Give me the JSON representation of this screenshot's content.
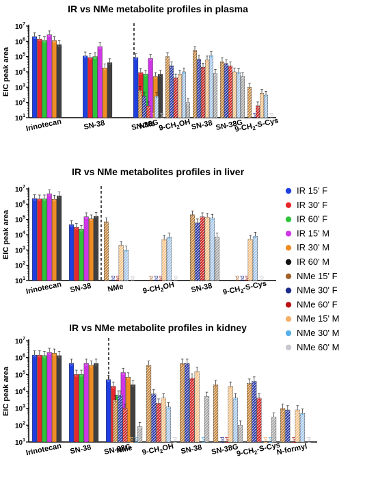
{
  "legend": [
    {
      "name": "IR 15' F",
      "color": "#1f3fe0",
      "dot": "#1f3fe0",
      "hatch": false
    },
    {
      "name": "IR 30' F",
      "color": "#e8262b",
      "dot": "#e8262b",
      "hatch": false
    },
    {
      "name": "IR 60' F",
      "color": "#2ec43a",
      "dot": "#2ec43a",
      "hatch": false
    },
    {
      "name": "IR 15' M",
      "color": "#cf36e6",
      "dot": "#cf36e6",
      "hatch": false
    },
    {
      "name": "IR 30' M",
      "color": "#f08c24",
      "dot": "#f08c24",
      "hatch": false
    },
    {
      "name": "IR 60' M",
      "color": "#404040",
      "dot": "#111111",
      "hatch": false
    },
    {
      "name": "NMe 15' F",
      "color": "#c4863e",
      "dot": "#a0622a",
      "hatch": true
    },
    {
      "name": "NMe 30' F",
      "color": "#2c3aa8",
      "dot": "#1c2a8a",
      "hatch": true
    },
    {
      "name": "NMe 60' F",
      "color": "#cc2222",
      "dot": "#bb1111",
      "hatch": true
    },
    {
      "name": "NMe 15' M",
      "color": "#f6c48a",
      "dot": "#f3b06a",
      "hatch": true
    },
    {
      "name": "NMe 30' M",
      "color": "#a8c8ea",
      "dot": "#58b0e8",
      "hatch": true
    },
    {
      "name": "NMe 60' M",
      "color": "#a8a8a8",
      "dot": "#c8c8d0",
      "hatch": true
    }
  ],
  "chart_data": [
    {
      "type": "bar",
      "title": "IR vs NMe metabolite profiles in plasma",
      "ylabel": "EIC peak area",
      "yscale": "log",
      "ylim": [
        10,
        10000000
      ],
      "yticks": [
        "10",
        "10",
        "10",
        "10",
        "10",
        "10",
        "10"
      ],
      "yexp": [
        "1",
        "2",
        "3",
        "4",
        "5",
        "6",
        "7"
      ],
      "ir_categories": [
        "Irinotecan",
        "SN-38",
        "SN-38G"
      ],
      "nme_categories": [
        {
          "pre": "NMe",
          "sub": "",
          "post": ""
        },
        {
          "pre": "9-CH",
          "sub": "2",
          "post": "OH"
        },
        {
          "pre": "SN-38",
          "sub": "",
          "post": ""
        },
        {
          "pre": "SN-38G",
          "sub": "",
          "post": ""
        },
        {
          "pre": "9-CH",
          "sub": "2",
          "post": "-S-Cys"
        }
      ],
      "nd_label": "nd",
      "ir_series": [
        {
          "name": "IR 15' F",
          "values": [
            2000000,
            110000,
            85000
          ]
        },
        {
          "name": "IR 30' F",
          "values": [
            1400000,
            85000,
            9000
          ]
        },
        {
          "name": "IR 60' F",
          "values": [
            1100000,
            100000,
            7000
          ]
        },
        {
          "name": "IR 15' M",
          "values": [
            2700000,
            450000,
            75000
          ]
        },
        {
          "name": "IR 30' M",
          "values": [
            1100000,
            18000,
            5000
          ]
        },
        {
          "name": "IR 60' M",
          "values": [
            600000,
            40000,
            7000
          ]
        }
      ],
      "nme_series": [
        {
          "name": "NMe 15' F",
          "values": [
            600,
            100000,
            250000,
            45000,
            1000
          ]
        },
        {
          "name": "NMe 30' F",
          "values": [
            250,
            25000,
            70000,
            35000,
            null
          ]
        },
        {
          "name": "NMe 60' F",
          "values": [
            60,
            4000,
            20000,
            25000,
            60
          ]
        },
        {
          "name": "NMe 15' M",
          "values": [
            null,
            7000,
            60000,
            10000,
            400
          ]
        },
        {
          "name": "NMe 30' M",
          "values": [
            250,
            10000,
            120000,
            9000,
            300
          ]
        },
        {
          "name": "NMe 60' M",
          "values": [
            null,
            100,
            8000,
            5000,
            null
          ]
        }
      ]
    },
    {
      "type": "bar",
      "title": "IR vs NMe metabolites profiles in liver",
      "ylabel": "EIC peak area",
      "yscale": "log",
      "ylim": [
        10,
        10000000
      ],
      "yticks": [
        "10",
        "10",
        "10",
        "10",
        "10",
        "10",
        "10"
      ],
      "yexp": [
        "1",
        "2",
        "3",
        "4",
        "5",
        "6",
        "7"
      ],
      "ir_categories": [
        "Irinotecan",
        "SN-38"
      ],
      "nme_categories": [
        {
          "pre": "NMe",
          "sub": "",
          "post": ""
        },
        {
          "pre": "9-CH",
          "sub": "2",
          "post": "OH"
        },
        {
          "pre": "SN-38",
          "sub": "",
          "post": ""
        },
        {
          "pre": "9-CH",
          "sub": "2",
          "post": "-S-Cys"
        }
      ],
      "nd_label": "nd",
      "ir_series": [
        {
          "name": "IR 15' F",
          "values": [
            2300000,
            45000
          ]
        },
        {
          "name": "IR 30' F",
          "values": [
            2200000,
            30000
          ]
        },
        {
          "name": "IR 60' F",
          "values": [
            2200000,
            22000
          ]
        },
        {
          "name": "IR 15' M",
          "values": [
            4800000,
            150000
          ]
        },
        {
          "name": "IR 30' M",
          "values": [
            2100000,
            110000
          ]
        },
        {
          "name": "IR 60' M",
          "values": [
            3500000,
            160000
          ]
        }
      ],
      "nme_series": [
        {
          "name": "NMe 15' F",
          "values": [
            70000,
            null,
            200000,
            null
          ]
        },
        {
          "name": "NMe 30' F",
          "values": [
            null,
            null,
            60000,
            null
          ]
        },
        {
          "name": "NMe 60' F",
          "values": [
            null,
            null,
            150000,
            null
          ]
        },
        {
          "name": "NMe 15' M",
          "values": [
            2000,
            5000,
            140000,
            5000
          ]
        },
        {
          "name": "NMe 30' M",
          "values": [
            1000,
            7000,
            120000,
            8000
          ]
        },
        {
          "name": "NMe 60' M",
          "values": [
            null,
            null,
            7000,
            null
          ]
        }
      ]
    },
    {
      "type": "bar",
      "title": "IR vs NMe metabolite profiles in kidney",
      "ylabel": "EIC peak area",
      "yscale": "log",
      "ylim": [
        10,
        10000000
      ],
      "yticks": [
        "10",
        "10",
        "10",
        "10",
        "10",
        "10",
        "10"
      ],
      "yexp": [
        "1",
        "2",
        "3",
        "4",
        "5",
        "6",
        "7"
      ],
      "ir_categories": [
        "Irinotecan",
        "SN-38",
        "SN-38G"
      ],
      "nme_categories": [
        {
          "pre": "NMe",
          "sub": "",
          "post": ""
        },
        {
          "pre": "9-CH",
          "sub": "2",
          "post": "OH"
        },
        {
          "pre": "SN-38",
          "sub": "",
          "post": ""
        },
        {
          "pre": "SN-38G",
          "sub": "",
          "post": ""
        },
        {
          "pre": "9-CH",
          "sub": "2",
          "post": "-S-Cys"
        },
        {
          "pre": "N-formyl",
          "sub": "",
          "post": ""
        }
      ],
      "nd_label": "nd",
      "ir_series": [
        {
          "name": "IR 15' F",
          "values": [
            1400000,
            450000,
            50000
          ]
        },
        {
          "name": "IR 30' F",
          "values": [
            1400000,
            100000,
            20000
          ]
        },
        {
          "name": "IR 60' F",
          "values": [
            1300000,
            100000,
            6000
          ]
        },
        {
          "name": "IR 15' M",
          "values": [
            2000000,
            450000,
            130000
          ]
        },
        {
          "name": "IR 30' M",
          "values": [
            1800000,
            350000,
            70000
          ]
        },
        {
          "name": "IR 60' M",
          "values": [
            1300000,
            450000,
            25000
          ]
        }
      ],
      "nme_series": [
        {
          "name": "NMe 15' F",
          "values": [
            3000,
            350000,
            450000,
            25000,
            30000,
            1000
          ]
        },
        {
          "name": "NMe 30' F",
          "values": [
            6000,
            7000,
            450000,
            null,
            40000,
            800
          ]
        },
        {
          "name": "NMe 60' F",
          "values": [
            1000,
            2000,
            60000,
            null,
            4000,
            null
          ]
        },
        {
          "name": "NMe 15' M",
          "values": [
            null,
            4000,
            150000,
            20000,
            null,
            800
          ]
        },
        {
          "name": "NMe 30' M",
          "values": [
            null,
            1200,
            null,
            4000,
            null,
            500
          ]
        },
        {
          "name": "NMe 60' M",
          "values": [
            80,
            null,
            5000,
            100,
            300,
            null
          ]
        }
      ]
    }
  ]
}
